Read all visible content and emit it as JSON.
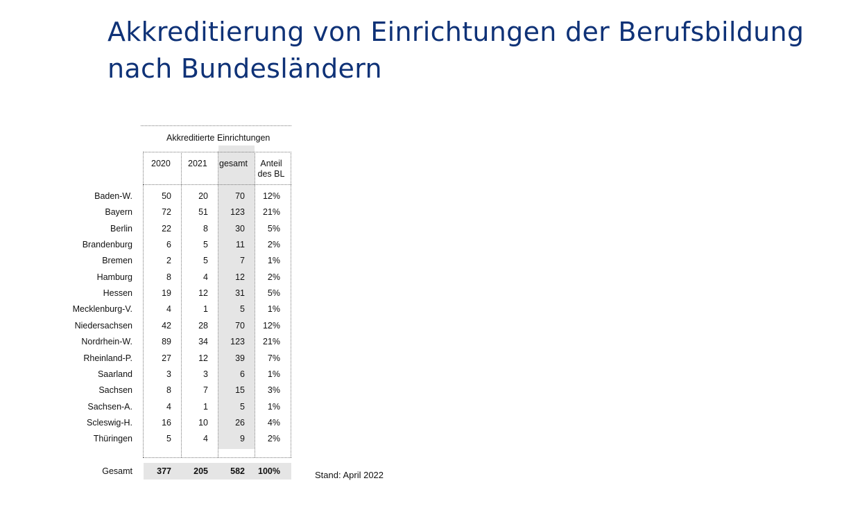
{
  "title": {
    "line1": "Akkreditierung von Einrichtungen der Berufsbildung",
    "line2": "nach Bundesländern"
  },
  "table": {
    "group_header": "Akkreditierte Einrichtungen",
    "columns": [
      "2020",
      "2021",
      "gesamt",
      "Anteil des BL"
    ],
    "rows": [
      {
        "label": "Baden-W.",
        "y2020": "50",
        "y2021": "20",
        "gesamt": "70",
        "anteil": "12%"
      },
      {
        "label": "Bayern",
        "y2020": "72",
        "y2021": "51",
        "gesamt": "123",
        "anteil": "21%"
      },
      {
        "label": "Berlin",
        "y2020": "22",
        "y2021": "8",
        "gesamt": "30",
        "anteil": "5%"
      },
      {
        "label": "Brandenburg",
        "y2020": "6",
        "y2021": "5",
        "gesamt": "11",
        "anteil": "2%"
      },
      {
        "label": "Bremen",
        "y2020": "2",
        "y2021": "5",
        "gesamt": "7",
        "anteil": "1%"
      },
      {
        "label": "Hamburg",
        "y2020": "8",
        "y2021": "4",
        "gesamt": "12",
        "anteil": "2%"
      },
      {
        "label": "Hessen",
        "y2020": "19",
        "y2021": "12",
        "gesamt": "31",
        "anteil": "5%"
      },
      {
        "label": "Mecklenburg-V.",
        "y2020": "4",
        "y2021": "1",
        "gesamt": "5",
        "anteil": "1%"
      },
      {
        "label": "Niedersachsen",
        "y2020": "42",
        "y2021": "28",
        "gesamt": "70",
        "anteil": "12%"
      },
      {
        "label": "Nordrhein-W.",
        "y2020": "89",
        "y2021": "34",
        "gesamt": "123",
        "anteil": "21%"
      },
      {
        "label": "Rheinland-P.",
        "y2020": "27",
        "y2021": "12",
        "gesamt": "39",
        "anteil": "7%"
      },
      {
        "label": "Saarland",
        "y2020": "3",
        "y2021": "3",
        "gesamt": "6",
        "anteil": "1%"
      },
      {
        "label": "Sachsen",
        "y2020": "8",
        "y2021": "7",
        "gesamt": "15",
        "anteil": "3%"
      },
      {
        "label": "Sachsen-A.",
        "y2020": "4",
        "y2021": "1",
        "gesamt": "5",
        "anteil": "1%"
      },
      {
        "label": "Scleswig-H.",
        "y2020": "16",
        "y2021": "10",
        "gesamt": "26",
        "anteil": "4%"
      },
      {
        "label": "Thüringen",
        "y2020": "5",
        "y2021": "4",
        "gesamt": "9",
        "anteil": "2%"
      }
    ],
    "total": {
      "label": "Gesamt",
      "y2020": "377",
      "y2021": "205",
      "gesamt": "582",
      "anteil": "100%"
    }
  },
  "footnote": "Stand: April 2022"
}
